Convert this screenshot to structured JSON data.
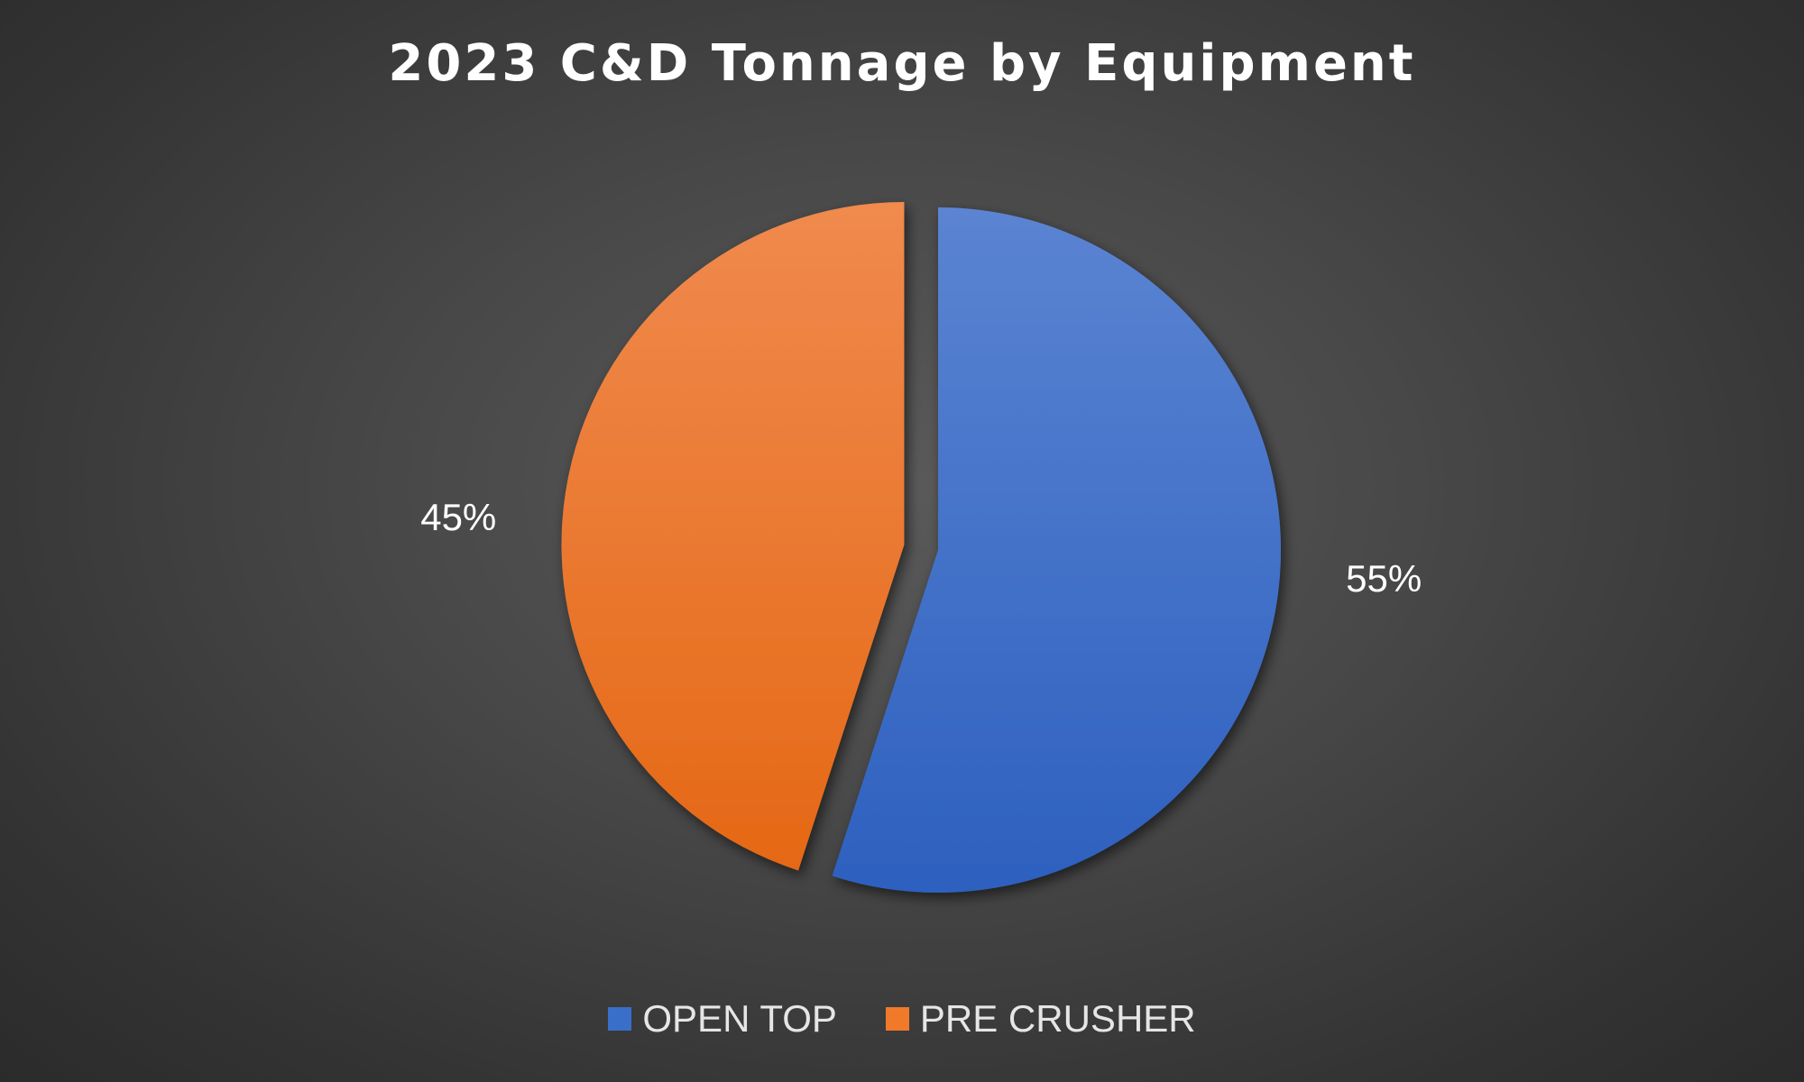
{
  "chart_data": {
    "type": "pie",
    "title": "2023 C&D Tonnage by Equipment",
    "start_angle_deg": 0,
    "direction": "clockwise",
    "legend_position": "bottom",
    "slices": [
      {
        "name": "OPEN TOP",
        "value": 55,
        "label": "55%",
        "color": "#3a6fc9",
        "color_light": "#5b84d2",
        "color_dark": "#2d60bf",
        "exploded": false
      },
      {
        "name": "PRE CRUSHER",
        "value": 45,
        "label": "45%",
        "color": "#f07a2a",
        "color_light": "#f08a4e",
        "color_dark": "#e56815",
        "exploded": true
      }
    ]
  }
}
